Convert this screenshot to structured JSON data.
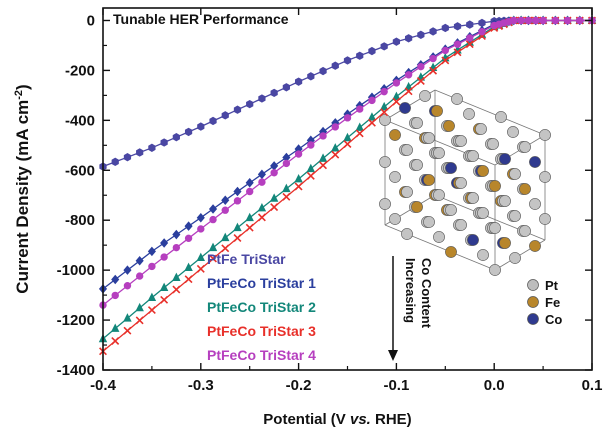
{
  "chart_data": {
    "type": "line",
    "title": "Tunable HER Performance",
    "xlabel_parts": [
      "Potential (V ",
      "vs.",
      " RHE)"
    ],
    "ylabel_parts": [
      "Current Density (mA cm",
      "-2",
      ")"
    ],
    "xlim": [
      -0.4,
      0.1
    ],
    "ylim": [
      -1400,
      50
    ],
    "xticks": [
      -0.4,
      -0.3,
      -0.2,
      -0.1,
      0.0,
      0.1
    ],
    "xtick_labels": [
      "-0.4",
      "-0.3",
      "-0.2",
      "-0.1",
      "0.0",
      "0.1"
    ],
    "yticks": [
      0,
      -200,
      -400,
      -600,
      -800,
      -1000,
      -1200,
      -1400
    ],
    "ytick_labels": [
      "0",
      "-200",
      "-400",
      "-600",
      "-800",
      "-1000",
      "-1200",
      "-1400"
    ],
    "series": [
      {
        "name": "PtFe TriStar",
        "color": "#4a47a3",
        "marker": "hexagon",
        "x": [
          -0.4,
          -0.35,
          -0.3,
          -0.25,
          -0.2,
          -0.15,
          -0.1,
          -0.05,
          0.0,
          0.02,
          0.05,
          0.1
        ],
        "y": [
          -585,
          -510,
          -425,
          -335,
          -245,
          -160,
          -85,
          -30,
          -3,
          0,
          0,
          0
        ]
      },
      {
        "name": "PtFeCo TriStar 1",
        "color": "#2b3f9e",
        "marker": "diamond",
        "x": [
          -0.4,
          -0.35,
          -0.3,
          -0.25,
          -0.2,
          -0.15,
          -0.1,
          -0.05,
          0.0,
          0.02,
          0.05,
          0.1
        ],
        "y": [
          -1075,
          -925,
          -790,
          -650,
          -515,
          -375,
          -240,
          -115,
          -15,
          0,
          0,
          0
        ]
      },
      {
        "name": "PtFeCo TriStar 2",
        "color": "#13877a",
        "marker": "triangle",
        "x": [
          -0.4,
          -0.35,
          -0.3,
          -0.25,
          -0.2,
          -0.15,
          -0.1,
          -0.05,
          0.0,
          0.02,
          0.05,
          0.1
        ],
        "y": [
          -1275,
          -1110,
          -950,
          -790,
          -635,
          -470,
          -305,
          -150,
          -25,
          0,
          0,
          0
        ]
      },
      {
        "name": "PtFeCo TriStar 3",
        "color": "#e8302a",
        "marker": "cross",
        "x": [
          -0.4,
          -0.35,
          -0.3,
          -0.25,
          -0.2,
          -0.15,
          -0.1,
          -0.05,
          0.0,
          0.02,
          0.05,
          0.1
        ],
        "y": [
          -1325,
          -1160,
          -995,
          -830,
          -665,
          -495,
          -325,
          -160,
          -30,
          0,
          0,
          0
        ]
      },
      {
        "name": "PtFeCo TriStar 4",
        "color": "#b63fbf",
        "marker": "circle",
        "x": [
          -0.4,
          -0.35,
          -0.3,
          -0.25,
          -0.2,
          -0.15,
          -0.1,
          -0.05,
          0.0,
          0.02,
          0.05,
          0.1
        ],
        "y": [
          -1140,
          -985,
          -835,
          -685,
          -535,
          -390,
          -250,
          -120,
          -20,
          0,
          0,
          0
        ]
      }
    ],
    "annotation_lines": [
      "Increasing",
      "Co Content"
    ],
    "inset": {
      "description_only": false,
      "legend": [
        {
          "label": "Pt",
          "color": "#bdbdbd"
        },
        {
          "label": "Fe",
          "color": "#b8862b"
        },
        {
          "label": "Co",
          "color": "#2f3a8f"
        }
      ]
    },
    "grid": false,
    "legend_position": "bottom-left"
  }
}
